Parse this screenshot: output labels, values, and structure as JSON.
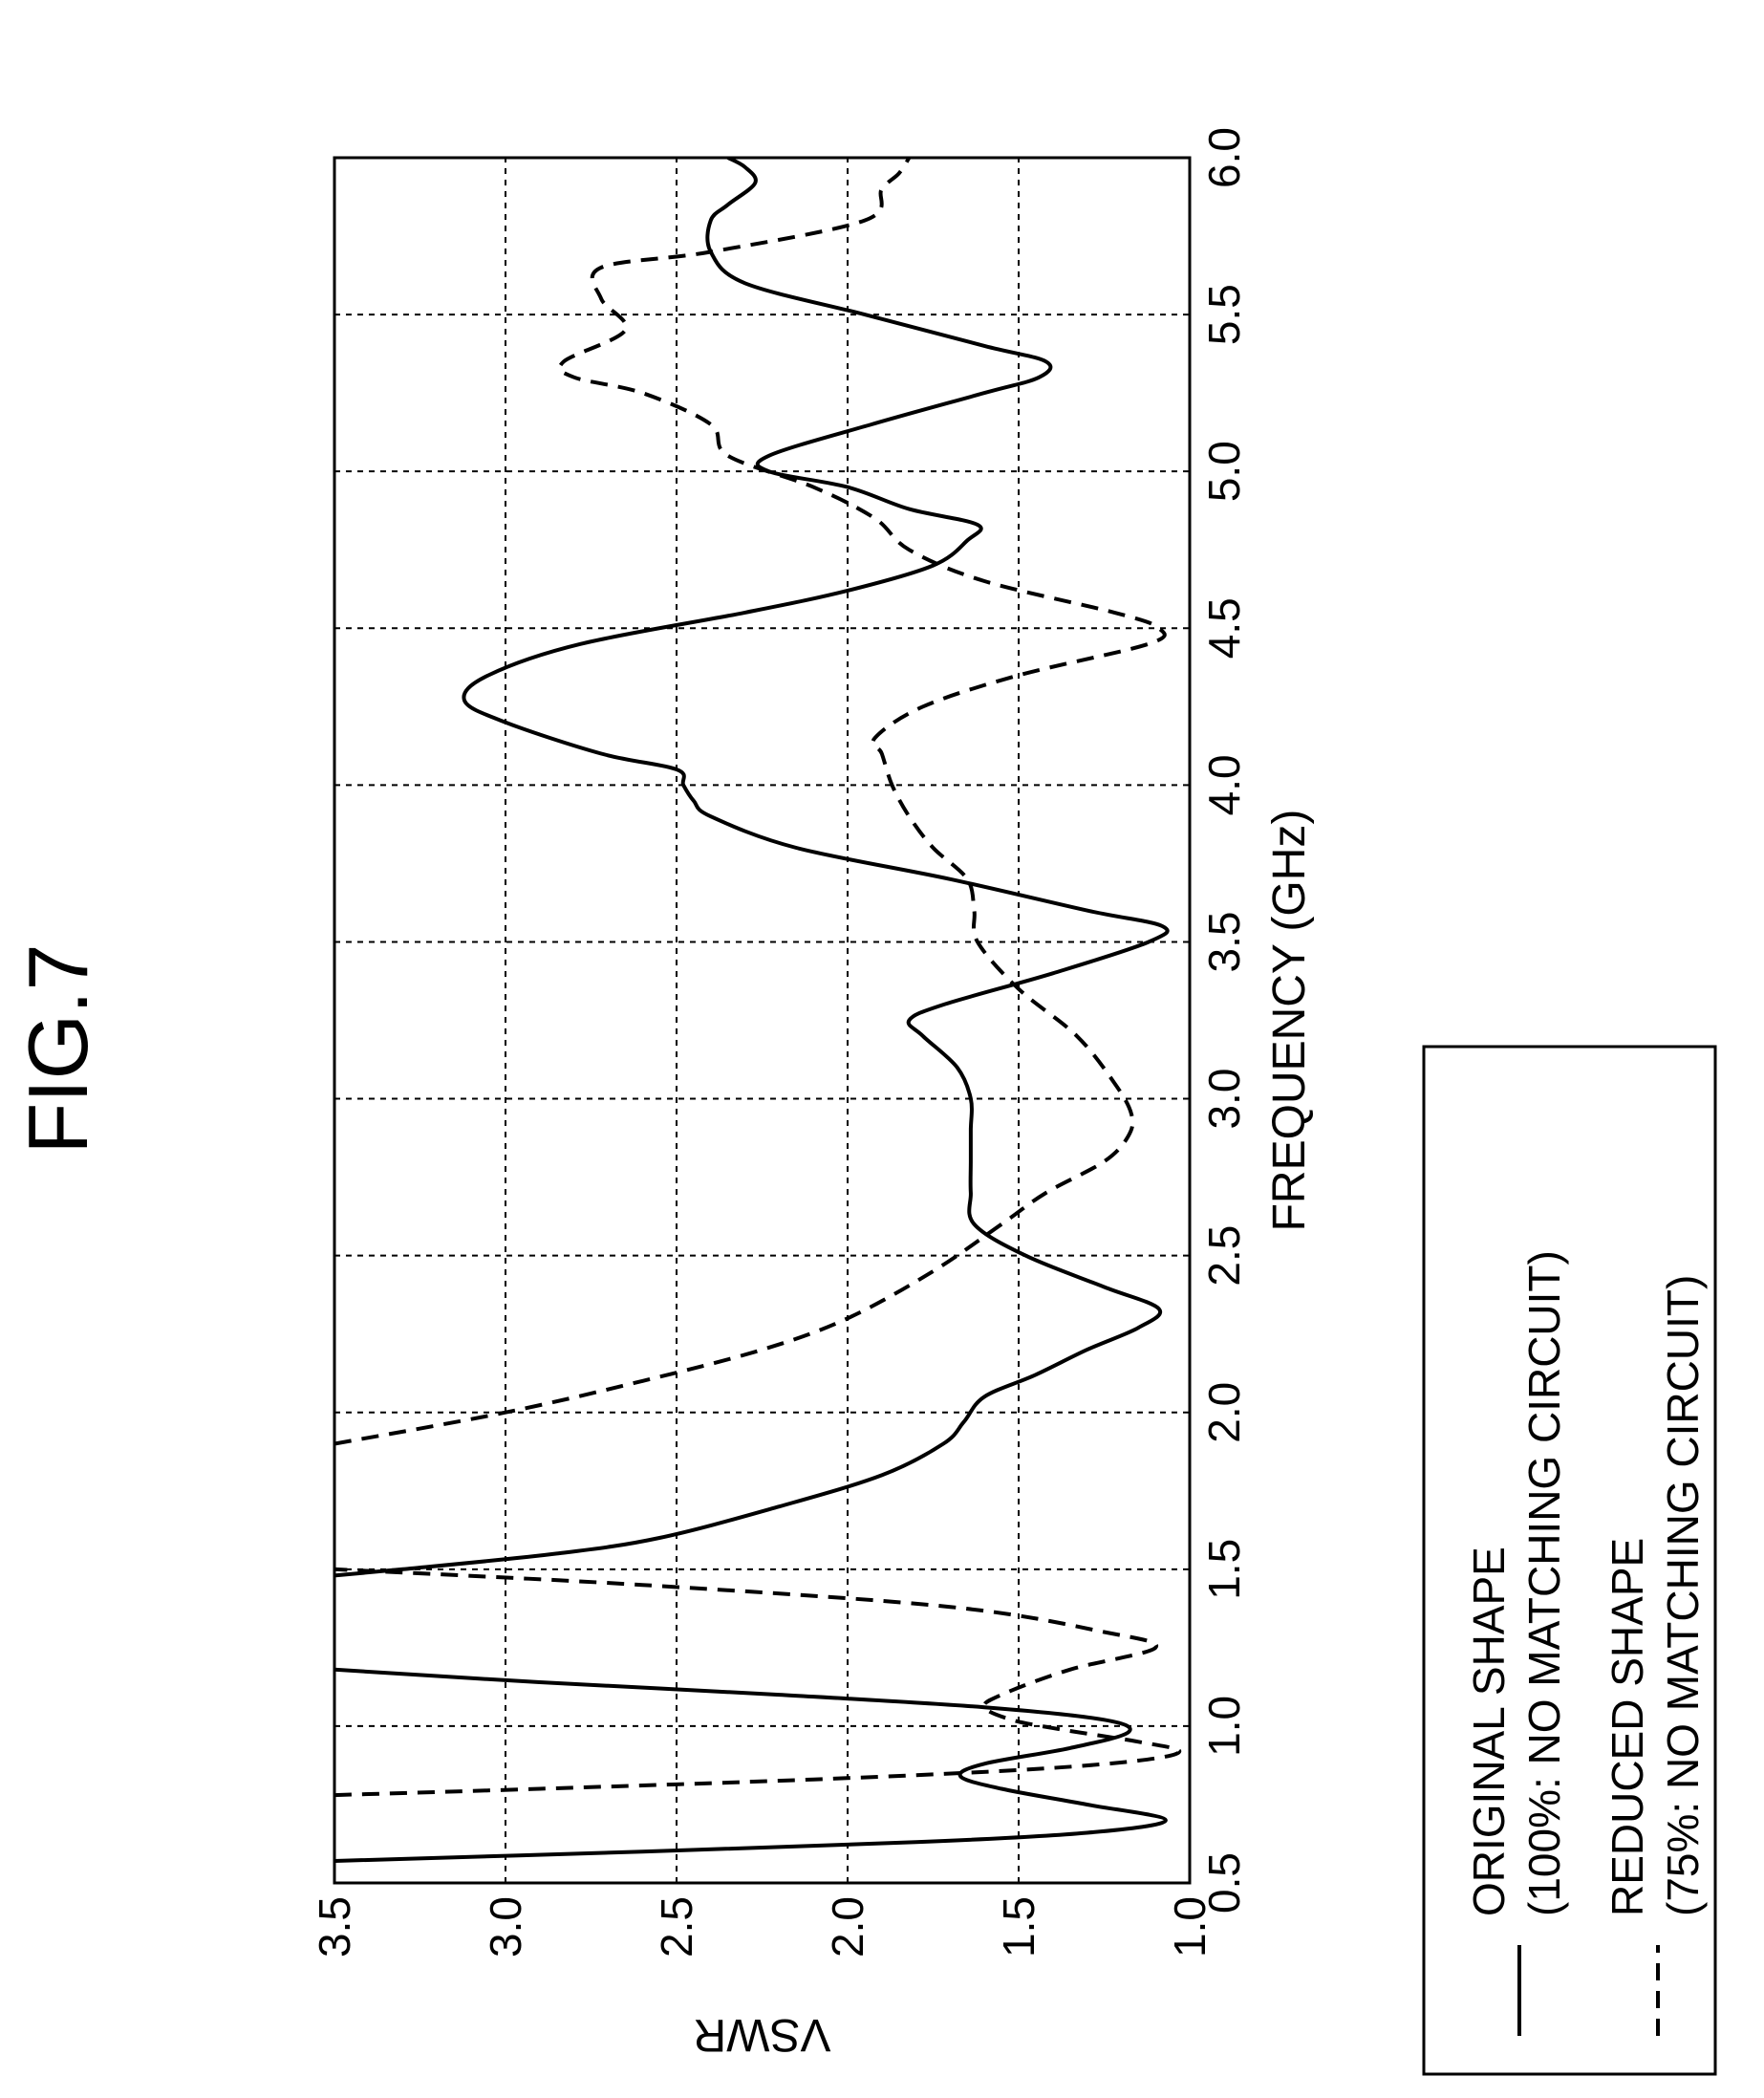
{
  "figure": {
    "title": "FIG.7"
  },
  "chart_data": {
    "type": "line",
    "title": "",
    "xlabel": "FREQUENCY (GHz)",
    "ylabel": "VSWR",
    "xlim": [
      0.5,
      6.0
    ],
    "ylim": [
      1.0,
      3.5
    ],
    "xticks": [
      "0.5",
      "1.0",
      "1.5",
      "2.0",
      "2.5",
      "3.0",
      "3.5",
      "4.0",
      "4.5",
      "5.0",
      "5.5",
      "6.0"
    ],
    "yticks": [
      "1.0",
      "1.5",
      "2.0",
      "2.5",
      "3.0",
      "3.5"
    ],
    "grid": true,
    "legend_position": "below-right",
    "series": [
      {
        "name": "ORIGINAL SHAPE",
        "name_line2": "(100%: NO MATCHING CIRCUIT)",
        "style": "solid",
        "color": "#000000",
        "points": [
          [
            0.57,
            3.5
          ],
          [
            0.6,
            2.6
          ],
          [
            0.63,
            1.8
          ],
          [
            0.66,
            1.3
          ],
          [
            0.7,
            1.07
          ],
          [
            0.75,
            1.3
          ],
          [
            0.8,
            1.55
          ],
          [
            0.84,
            1.67
          ],
          [
            0.88,
            1.6
          ],
          [
            0.93,
            1.35
          ],
          [
            0.98,
            1.18
          ],
          [
            1.02,
            1.25
          ],
          [
            1.06,
            1.6
          ],
          [
            1.1,
            2.2
          ],
          [
            1.14,
            2.9
          ],
          [
            1.18,
            3.5
          ],
          [
            1.48,
            3.5
          ],
          [
            1.5,
            3.3
          ],
          [
            1.55,
            2.85
          ],
          [
            1.6,
            2.55
          ],
          [
            1.7,
            2.2
          ],
          [
            1.8,
            1.9
          ],
          [
            1.9,
            1.72
          ],
          [
            1.97,
            1.66
          ],
          [
            2.05,
            1.6
          ],
          [
            2.12,
            1.45
          ],
          [
            2.2,
            1.3
          ],
          [
            2.27,
            1.15
          ],
          [
            2.33,
            1.09
          ],
          [
            2.4,
            1.25
          ],
          [
            2.5,
            1.48
          ],
          [
            2.6,
            1.63
          ],
          [
            2.7,
            1.64
          ],
          [
            2.8,
            1.64
          ],
          [
            2.9,
            1.64
          ],
          [
            3.0,
            1.64
          ],
          [
            3.1,
            1.68
          ],
          [
            3.2,
            1.78
          ],
          [
            3.25,
            1.82
          ],
          [
            3.3,
            1.72
          ],
          [
            3.4,
            1.4
          ],
          [
            3.5,
            1.12
          ],
          [
            3.55,
            1.08
          ],
          [
            3.6,
            1.3
          ],
          [
            3.7,
            1.7
          ],
          [
            3.8,
            2.15
          ],
          [
            3.9,
            2.4
          ],
          [
            3.95,
            2.45
          ],
          [
            4.0,
            2.48
          ],
          [
            4.05,
            2.5
          ],
          [
            4.1,
            2.72
          ],
          [
            4.2,
            3.0
          ],
          [
            4.27,
            3.12
          ],
          [
            4.35,
            3.05
          ],
          [
            4.45,
            2.78
          ],
          [
            4.55,
            2.3
          ],
          [
            4.62,
            2.0
          ],
          [
            4.7,
            1.75
          ],
          [
            4.78,
            1.65
          ],
          [
            4.83,
            1.62
          ],
          [
            4.88,
            1.82
          ],
          [
            4.95,
            2.0
          ],
          [
            5.0,
            2.23
          ],
          [
            5.05,
            2.23
          ],
          [
            5.15,
            1.93
          ],
          [
            5.25,
            1.6
          ],
          [
            5.3,
            1.44
          ],
          [
            5.35,
            1.42
          ],
          [
            5.4,
            1.6
          ],
          [
            5.5,
            1.95
          ],
          [
            5.6,
            2.3
          ],
          [
            5.7,
            2.4
          ],
          [
            5.8,
            2.4
          ],
          [
            5.85,
            2.35
          ],
          [
            5.92,
            2.27
          ],
          [
            5.97,
            2.3
          ],
          [
            6.0,
            2.35
          ]
        ]
      },
      {
        "name": "REDUCED SHAPE",
        "name_line2": "(75%: NO MATCHING CIRCUIT)",
        "style": "dashed",
        "color": "#000000",
        "points": [
          [
            0.78,
            3.5
          ],
          [
            0.8,
            2.9
          ],
          [
            0.83,
            2.1
          ],
          [
            0.86,
            1.5
          ],
          [
            0.89,
            1.15
          ],
          [
            0.92,
            1.03
          ],
          [
            0.95,
            1.15
          ],
          [
            0.99,
            1.38
          ],
          [
            1.02,
            1.52
          ],
          [
            1.06,
            1.6
          ],
          [
            1.1,
            1.55
          ],
          [
            1.18,
            1.35
          ],
          [
            1.25,
            1.1
          ],
          [
            1.3,
            1.25
          ],
          [
            1.38,
            1.7
          ],
          [
            1.45,
            2.6
          ],
          [
            1.5,
            3.5
          ],
          [
            1.9,
            3.5
          ],
          [
            2.0,
            3.0
          ],
          [
            2.1,
            2.6
          ],
          [
            2.2,
            2.25
          ],
          [
            2.3,
            2.0
          ],
          [
            2.45,
            1.75
          ],
          [
            2.6,
            1.55
          ],
          [
            2.7,
            1.42
          ],
          [
            2.8,
            1.25
          ],
          [
            2.88,
            1.18
          ],
          [
            2.95,
            1.17
          ],
          [
            3.05,
            1.22
          ],
          [
            3.2,
            1.33
          ],
          [
            3.35,
            1.5
          ],
          [
            3.5,
            1.62
          ],
          [
            3.6,
            1.63
          ],
          [
            3.7,
            1.65
          ],
          [
            3.8,
            1.75
          ],
          [
            3.9,
            1.82
          ],
          [
            4.0,
            1.87
          ],
          [
            4.1,
            1.9
          ],
          [
            4.15,
            1.92
          ],
          [
            4.25,
            1.78
          ],
          [
            4.35,
            1.5
          ],
          [
            4.45,
            1.12
          ],
          [
            4.5,
            1.09
          ],
          [
            4.55,
            1.22
          ],
          [
            4.65,
            1.6
          ],
          [
            4.75,
            1.82
          ],
          [
            4.85,
            1.92
          ],
          [
            4.95,
            2.1
          ],
          [
            5.05,
            2.35
          ],
          [
            5.15,
            2.4
          ],
          [
            5.25,
            2.6
          ],
          [
            5.3,
            2.8
          ],
          [
            5.35,
            2.83
          ],
          [
            5.45,
            2.65
          ],
          [
            5.55,
            2.72
          ],
          [
            5.65,
            2.72
          ],
          [
            5.7,
            2.4
          ],
          [
            5.8,
            1.95
          ],
          [
            5.9,
            1.9
          ],
          [
            5.95,
            1.85
          ],
          [
            6.0,
            1.82
          ]
        ]
      }
    ]
  }
}
